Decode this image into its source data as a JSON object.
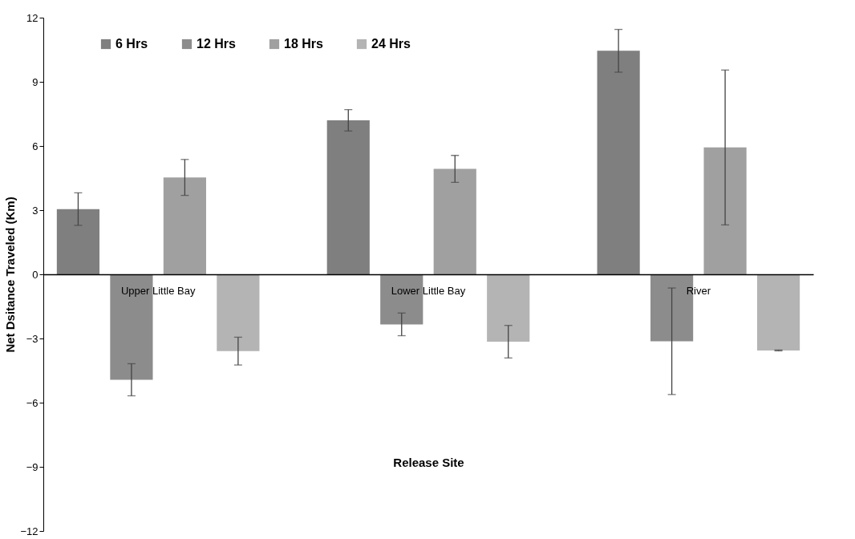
{
  "chart_data": {
    "type": "bar",
    "xlabel": "Release Site",
    "ylabel": "Net Dsitance Traveled (Km)",
    "categories": [
      "Upper Little Bay",
      "Lower Little Bay",
      "River"
    ],
    "series": [
      {
        "name": "6 Hrs",
        "color": "#7f7f7f",
        "values": [
          3.05,
          7.2,
          10.45
        ],
        "errors": [
          0.76,
          0.5,
          1.0
        ]
      },
      {
        "name": "12 Hrs",
        "color": "#8c8c8c",
        "values": [
          -4.93,
          -2.34,
          -3.13
        ],
        "errors": [
          0.75,
          0.53,
          2.49
        ]
      },
      {
        "name": "18 Hrs",
        "color": "#a0a0a0",
        "values": [
          4.53,
          4.93,
          5.93
        ],
        "errors": [
          0.84,
          0.63,
          3.62
        ]
      },
      {
        "name": "24 Hrs",
        "color": "#b4b4b4",
        "values": [
          -3.59,
          -3.15,
          -3.56
        ],
        "errors": [
          0.65,
          0.76,
          0.02
        ]
      }
    ],
    "ylim": [
      -12,
      12
    ],
    "yticks": [
      -12,
      -9,
      -6,
      -3,
      0,
      3,
      6,
      9,
      12
    ],
    "grid": false,
    "legend": "top left"
  }
}
